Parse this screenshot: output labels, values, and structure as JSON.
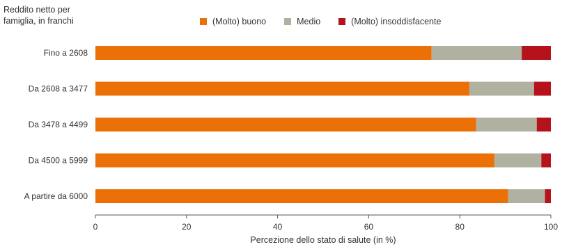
{
  "chart_data": {
    "type": "bar",
    "orientation": "horizontal",
    "stacked": true,
    "ylabel": "Reddito netto per famiglia, in franchi",
    "xlabel": "Percezione dello stato di salute (in %)",
    "xlim": [
      0,
      100
    ],
    "xticks": [
      "0",
      "20",
      "40",
      "60",
      "80",
      "100"
    ],
    "categories": [
      "Fino a 2608",
      "Da 2608 a 3477",
      "Da 3478 a 4499",
      "Da 4500 a 5999",
      "A partire da 6000"
    ],
    "series": [
      {
        "name": "(Molto) buono",
        "color": "#ec7008",
        "values": [
          73.8,
          82.1,
          83.6,
          87.6,
          90.6
        ]
      },
      {
        "name": "Medio",
        "color": "#b1b1a2",
        "values": [
          19.8,
          14.2,
          13.3,
          10.3,
          8.1
        ]
      },
      {
        "name": "(Molto) insoddisfacente",
        "color": "#b5121b",
        "values": [
          6.4,
          3.7,
          3.1,
          2.1,
          1.3
        ]
      }
    ],
    "legend_position": "top",
    "grid": false
  }
}
